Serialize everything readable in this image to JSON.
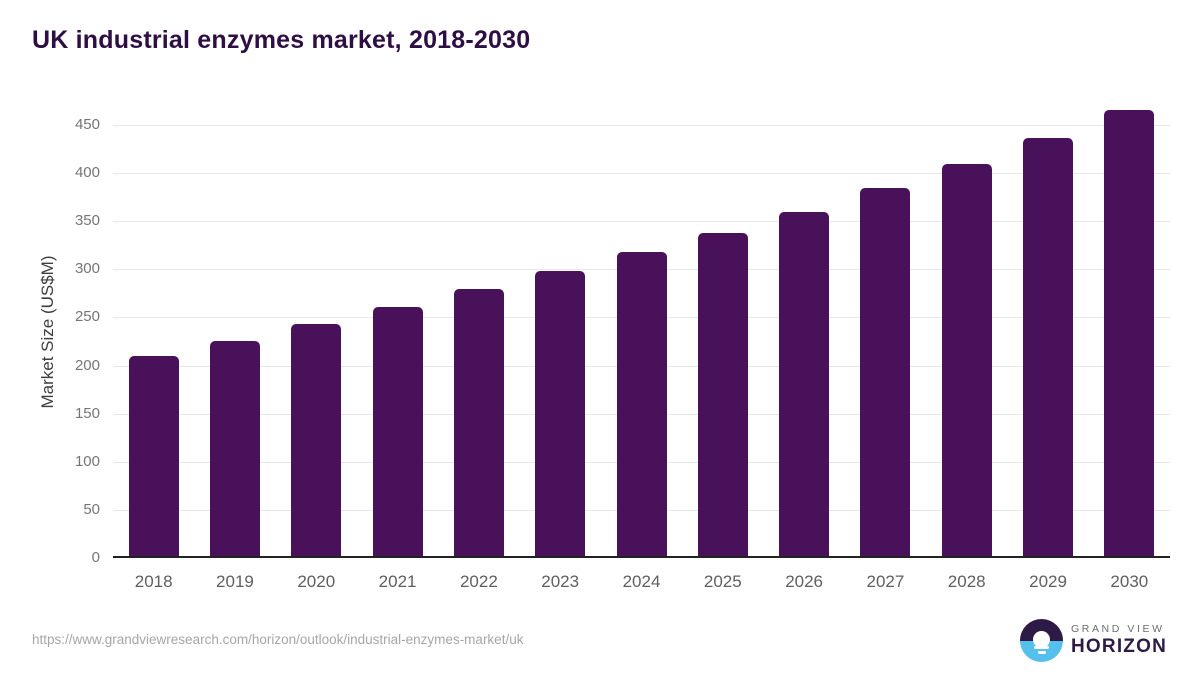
{
  "page": {
    "title": "UK industrial enzymes market, 2018-2030"
  },
  "chart_data": {
    "type": "bar",
    "title": "UK industrial enzymes market, 2018-2030",
    "categories": [
      "2018",
      "2019",
      "2020",
      "2021",
      "2022",
      "2023",
      "2024",
      "2025",
      "2026",
      "2027",
      "2028",
      "2029",
      "2030"
    ],
    "values": [
      208,
      223,
      241,
      259,
      277,
      296,
      316,
      336,
      358,
      382,
      407,
      434,
      464
    ],
    "xlabel": "",
    "ylabel": "Market Size (US$M)",
    "ylim": [
      0,
      470
    ],
    "yticks": [
      0,
      50,
      100,
      150,
      200,
      250,
      300,
      350,
      400,
      450
    ],
    "grid": true,
    "legend": "none"
  },
  "colors": {
    "bar": "#481159",
    "title": "#2e0f44",
    "grid": "#e8e8e8",
    "axis": "#222222",
    "y_tick": "#757575",
    "x_tick": "#5f5f5f",
    "logo_purple": "#2e1a47",
    "logo_blue": "#55c0ec"
  },
  "footer": {
    "source_url": "https://www.grandviewresearch.com/horizon/outlook/industrial-enzymes-market/uk",
    "logo": {
      "brand_top": "GRAND VIEW",
      "brand_bottom": "HORIZON"
    }
  }
}
